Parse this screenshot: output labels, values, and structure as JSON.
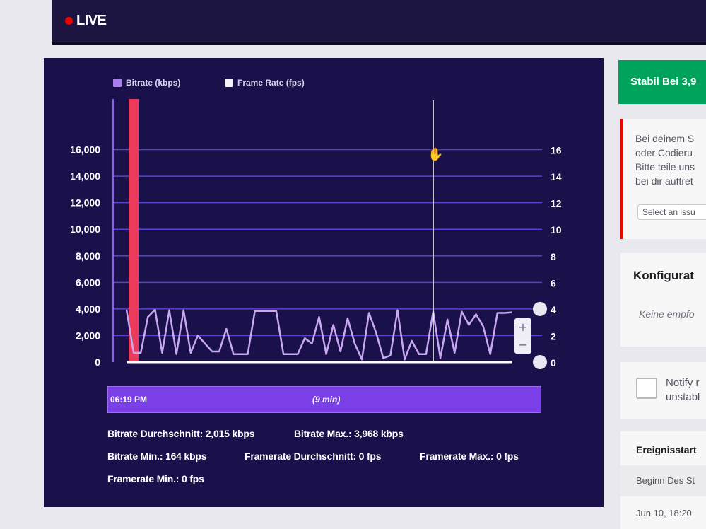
{
  "header": {
    "live_label": "LIVE"
  },
  "legend": [
    {
      "label": "Bitrate (kbps)",
      "color": "#a97ff0"
    },
    {
      "label": "Frame Rate (fps)",
      "color": "#f4f2fb"
    }
  ],
  "chart_data": {
    "type": "line",
    "left_axis": {
      "ticks": [
        "16,000",
        "14,000",
        "12,000",
        "10,000",
        "8,000",
        "6,000",
        "4,000",
        "2,000",
        "0"
      ],
      "range": [
        0,
        18000
      ]
    },
    "right_axis": {
      "ticks": [
        "16",
        "14",
        "12",
        "10",
        "8",
        "6",
        "4",
        "2",
        "0"
      ],
      "range": [
        0,
        18
      ]
    },
    "series": [
      {
        "name": "Bitrate (kbps)",
        "color": "#c9a8f2",
        "axis": "left",
        "values": [
          3950,
          700,
          700,
          3400,
          3950,
          700,
          3900,
          600,
          3900,
          700,
          2000,
          1400,
          800,
          800,
          2500,
          600,
          600,
          600,
          3850,
          3850,
          3850,
          3850,
          600,
          600,
          600,
          1800,
          1400,
          3400,
          600,
          2800,
          800,
          3300,
          1400,
          200,
          3700,
          2200,
          300,
          500,
          3900,
          200,
          1600,
          600,
          600,
          3800,
          300,
          3200,
          700,
          3800,
          2800,
          3600,
          2700,
          600,
          3700,
          3700,
          3750
        ]
      },
      {
        "name": "Frame Rate (fps)",
        "color": "#ffffff",
        "axis": "right",
        "values": [
          0,
          0,
          0,
          0,
          0,
          0,
          0,
          0,
          0,
          0,
          0,
          0,
          0,
          0,
          0,
          0,
          0,
          0,
          0,
          0,
          0,
          0,
          0,
          0,
          0,
          0,
          0,
          0,
          0,
          0,
          0,
          0,
          0,
          0,
          0,
          0,
          0,
          0,
          0,
          0,
          0,
          0,
          0,
          0,
          0,
          0,
          0,
          0,
          0,
          0,
          0,
          0,
          0,
          0,
          0
        ]
      }
    ],
    "highlight_index": 1,
    "cursor_index": 43,
    "colors": {
      "gridline": "#5c3fd0",
      "axis_line": "#8b5cf0",
      "highlight": "#eb3b5a",
      "text": "#ffffff"
    }
  },
  "zoom": {
    "in_label": "+",
    "out_label": "−"
  },
  "timeline": {
    "start": "06:19 PM",
    "duration": "(9 min)"
  },
  "stats": {
    "bitrate_avg": "Bitrate Durchschnitt: 2,015 kbps",
    "bitrate_max": "Bitrate Max.: 3,968 kbps",
    "bitrate_min": "Bitrate Min.: 164 kbps",
    "framerate_avg": "Framerate Durchschnitt: 0 fps",
    "framerate_max": "Framerate Max.: 0 fps",
    "framerate_min": "Framerate Min.: 0 fps"
  },
  "right_panel": {
    "status_button": "Stabil Bei 3,9",
    "alert_lines": [
      "Bei deinem S",
      "oder Codieru",
      "Bitte teile uns",
      "bei dir auftret"
    ],
    "issue_select": "Select an issu",
    "config_title": "Konfigurat",
    "config_sub": "Keine empfo",
    "notify_lines": [
      "Notify r",
      "unstabl"
    ],
    "events_header": "Ereignisstart",
    "events": [
      "Beginn Des St",
      "Jun 10, 18:20"
    ],
    "colors": {
      "accent_green": "#00a35c",
      "alert_red": "#eb0400"
    }
  }
}
